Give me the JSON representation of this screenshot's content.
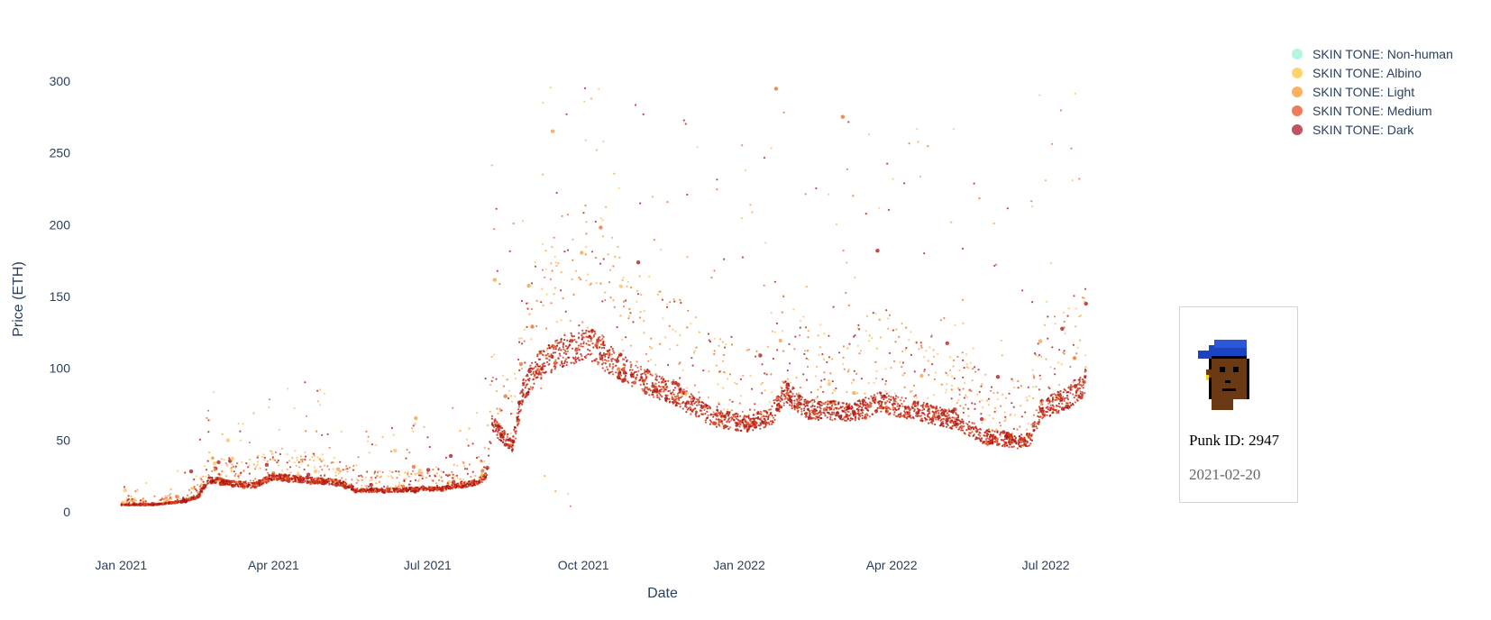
{
  "chart_data": {
    "type": "scatter",
    "title": "",
    "xlabel": "Date",
    "ylabel": "Price (ETH)",
    "x_ticks": [
      "Jan 2021",
      "Apr 2021",
      "Jul 2021",
      "Oct 2021",
      "Jan 2022",
      "Apr 2022",
      "Jul 2022"
    ],
    "x_range": [
      "2020-12-10",
      "2022-08-20"
    ],
    "y_ticks": [
      0,
      50,
      100,
      150,
      200,
      250,
      300
    ],
    "ylim": [
      -20,
      320
    ],
    "grid": false,
    "legend_position": "top-right",
    "series": [
      {
        "name": "SKIN TONE: Non-human",
        "color": "#b4f5e3"
      },
      {
        "name": "SKIN TONE: Albino",
        "color": "#ffd36e"
      },
      {
        "name": "SKIN TONE: Light",
        "color": "#fbb15e"
      },
      {
        "name": "SKIN TONE: Medium",
        "color": "#ef7b5c"
      },
      {
        "name": "SKIN TONE: Dark",
        "color": "#c05560"
      }
    ],
    "trend": [
      [
        "2021-01-01",
        5
      ],
      [
        "2021-01-20",
        5
      ],
      [
        "2021-02-05",
        7
      ],
      [
        "2021-02-15",
        10
      ],
      [
        "2021-02-22",
        22
      ],
      [
        "2021-03-05",
        20
      ],
      [
        "2021-03-20",
        18
      ],
      [
        "2021-04-01",
        24
      ],
      [
        "2021-04-20",
        22
      ],
      [
        "2021-05-10",
        20
      ],
      [
        "2021-05-20",
        15
      ],
      [
        "2021-06-15",
        15
      ],
      [
        "2021-07-10",
        16
      ],
      [
        "2021-07-30",
        20
      ],
      [
        "2021-08-05",
        25
      ],
      [
        "2021-08-08",
        60
      ],
      [
        "2021-08-20",
        45
      ],
      [
        "2021-08-27",
        85
      ],
      [
        "2021-09-05",
        100
      ],
      [
        "2021-09-20",
        110
      ],
      [
        "2021-10-05",
        115
      ],
      [
        "2021-10-20",
        100
      ],
      [
        "2021-11-05",
        90
      ],
      [
        "2021-11-25",
        80
      ],
      [
        "2021-12-15",
        65
      ],
      [
        "2022-01-05",
        60
      ],
      [
        "2022-01-20",
        65
      ],
      [
        "2022-01-28",
        82
      ],
      [
        "2022-02-10",
        70
      ],
      [
        "2022-03-10",
        68
      ],
      [
        "2022-03-25",
        75
      ],
      [
        "2022-04-20",
        68
      ],
      [
        "2022-05-10",
        62
      ],
      [
        "2022-05-25",
        52
      ],
      [
        "2022-06-15",
        48
      ],
      [
        "2022-06-22",
        50
      ],
      [
        "2022-06-28",
        70
      ],
      [
        "2022-07-15",
        78
      ],
      [
        "2022-07-25",
        90
      ]
    ],
    "tooltip": {
      "punk_id": "Punk ID: 2947",
      "date": "2021-02-20"
    }
  }
}
